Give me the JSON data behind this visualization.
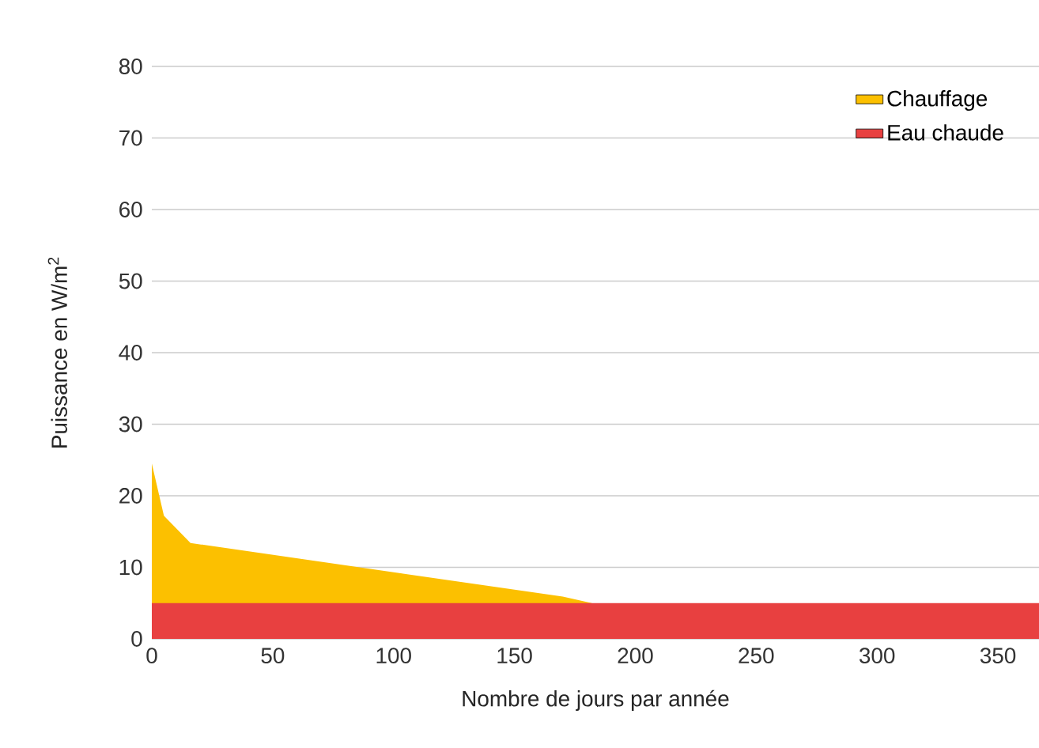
{
  "chart_data": {
    "type": "area",
    "xlabel": "Nombre de jours par année",
    "ylabel": "Puissance en W/m$^{2}$",
    "series": [
      {
        "name": "Chauffage",
        "color": "#fcc000",
        "x": [
          0,
          5,
          16,
          170,
          182
        ],
        "values": [
          24.5,
          17.2,
          13.4,
          5.9,
          5
        ]
      },
      {
        "name": "Eau chaude",
        "color": "#e84040",
        "x": [
          0,
          367
        ],
        "values": [
          5,
          5
        ]
      }
    ],
    "xlim": [
      0,
      367
    ],
    "xticks": [
      0,
      50,
      100,
      150,
      200,
      250,
      300,
      350
    ],
    "ylim": [
      0,
      80
    ],
    "yticks": [
      0,
      10,
      20,
      30,
      40,
      50,
      60,
      70,
      80
    ],
    "grid": "y",
    "legend": "top right"
  }
}
